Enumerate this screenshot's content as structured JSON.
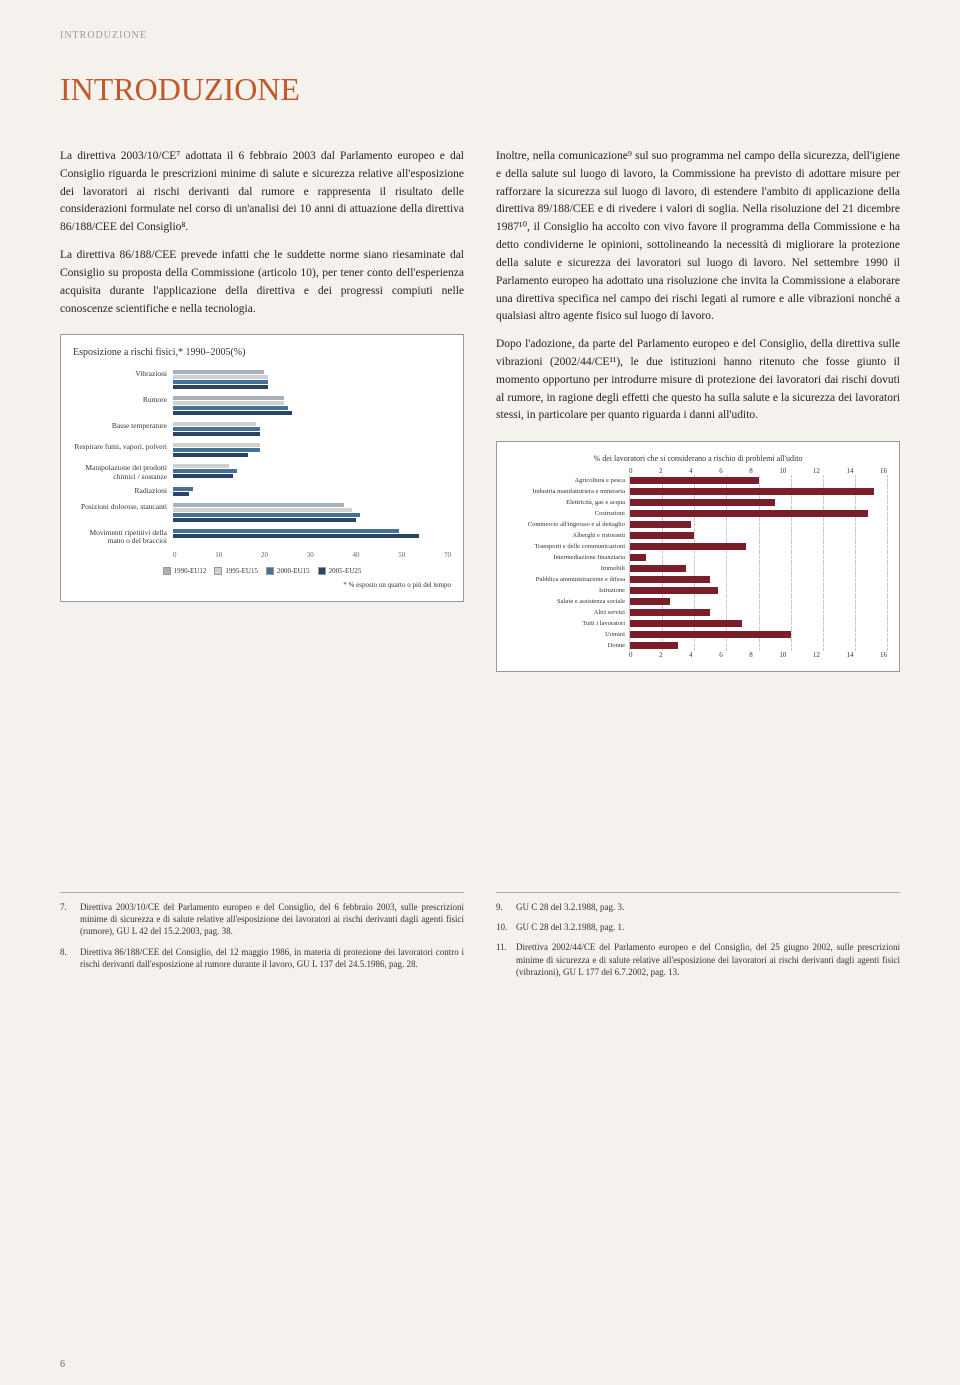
{
  "header_label": "INTRODUZIONE",
  "page_title": "INTRODUZIONE",
  "left_paras": [
    "La direttiva 2003/10/CE⁷ adottata il 6 febbraio 2003 dal Parlamento europeo e dal Consiglio riguarda le prescrizioni minime di salute e sicurezza relative all'esposizione dei lavoratori ai rischi derivanti dal rumore e rappresenta il risultato delle considerazioni formulate nel corso di un'analisi dei 10 anni di attuazione della direttiva 86/188/CEE del Consiglio⁸.",
    "La direttiva 86/188/CEE prevede infatti che le suddette norme siano riesaminate dal Consiglio su proposta della Commissione (articolo 10), per tener conto dell'esperienza acquisita durante l'applicazione della direttiva e dei progressi compiuti nelle conoscenze scientifiche e nella tecnologia."
  ],
  "right_paras": [
    "Inoltre, nella comunicazione⁹ sul suo programma nel campo della sicurezza, dell'igiene e della salute sul luogo di lavoro, la Commissione ha previsto di adottare misure per rafforzare la sicurezza sul luogo di lavoro, di estendere l'ambito di applicazione della direttiva 89/188/CEE e di rivedere i valori di soglia. Nella risoluzione del 21 dicembre 1987¹⁰, il Consiglio ha accolto con vivo favore il programma della Commissione e ha detto condividerne le opinioni, sottolineando la necessità di migliorare la protezione della salute e sicurezza dei lavoratori sul luogo di lavoro. Nel settembre 1990 il Parlamento europeo ha adottato una risoluzione che invita la Commissione a elaborare una direttiva specifica nel campo dei rischi legati al rumore e alle vibrazioni nonché a qualsiasi altro agente fisico sul luogo di lavoro.",
    "Dopo l'adozione, da parte del Parlamento europeo e del Consiglio, della direttiva sulle vibrazioni (2002/44/CE¹¹), le due istituzioni hanno ritenuto che fosse giunto il momento opportuno per introdurre misure di protezione dei lavoratori dai rischi dovuti al rumore, in ragione degli effetti che questo ha sulla salute e la sicurezza dei lavoratori stessi, in particolare per quanto riguarda i danni all'udito."
  ],
  "chart1": {
    "type": "bar",
    "title": "Esposizione a rischi fisici,* 1990–2005(%)",
    "xmax": 70,
    "categories": [
      "Vibrazioni",
      "Rumore",
      "Basse temperature",
      "Respirare fumi, vapori, polveri",
      "Manipolazione dei prodotti chimici / sostanze",
      "Radiazioni",
      "Posizioni dolorose, stancanti",
      "Movimenti ripetitivi della mano o del braccioi"
    ],
    "series_labels": [
      "1990-EU12",
      "1995-EU15",
      "2000-EU15",
      "2005-EU25"
    ],
    "series_colors": [
      "#a8b0b8",
      "#d0d0d0",
      "#447099",
      "#2a4466"
    ],
    "data": [
      [
        23,
        24,
        24,
        24
      ],
      [
        28,
        28,
        29,
        30
      ],
      [
        0,
        21,
        22,
        22
      ],
      [
        0,
        22,
        22,
        19
      ],
      [
        0,
        14,
        16,
        15
      ],
      [
        0,
        0,
        5,
        4
      ],
      [
        43,
        45,
        47,
        46
      ],
      [
        0,
        0,
        57,
        62
      ]
    ],
    "note": "* % esposto un quarto o più del tempo",
    "xticks": [
      0,
      10,
      20,
      30,
      40,
      50,
      70
    ]
  },
  "chart2": {
    "type": "bar",
    "title": "% dei lavoratori che si considerano a rischio di problemi all'udito",
    "xmax": 16,
    "bar_color": "#7a1f2a",
    "grid_color": "#cccccc",
    "xticks": [
      0,
      2,
      4,
      6,
      8,
      10,
      12,
      14,
      16
    ],
    "rows": [
      {
        "label": "Agricoltura e pesca",
        "value": 8.0
      },
      {
        "label": "Industria manifatturiera e mineraria",
        "value": 15.2
      },
      {
        "label": "Elettricità, gas e acqua",
        "value": 9.0
      },
      {
        "label": "Costruzioni",
        "value": 14.8
      },
      {
        "label": "Commercio all'ingrosso e al dettaglio",
        "value": 3.8
      },
      {
        "label": "Alberghi e ristoranti",
        "value": 4.0
      },
      {
        "label": "Transporti e delle communicazioni",
        "value": 7.2
      },
      {
        "label": "Intermediazione finanziaria",
        "value": 1.0
      },
      {
        "label": "Immobili",
        "value": 3.5
      },
      {
        "label": "Pubblica amministrazione e difesa",
        "value": 5.0
      },
      {
        "label": "Istruzione",
        "value": 5.5
      },
      {
        "label": "Salute e assistenza sociale",
        "value": 2.5
      },
      {
        "label": "Altri servizi",
        "value": 5.0
      },
      {
        "label": "Tutti i lavoratori",
        "value": 7.0
      },
      {
        "label": "Uomini",
        "value": 10.0
      },
      {
        "label": "Donne",
        "value": 3.0
      }
    ]
  },
  "footnotes_left": [
    {
      "num": "7.",
      "text": "Direttiva 2003/10/CE del Parlamento europeo e del Consiglio, del 6 febbraio 2003, sulle prescrizioni minime di sicurezza e di salute relative all'esposizione dei lavoratori ai rischi derivanti dagli agenti fisici (rumore), GU L 42 del 15.2.2003, pag. 38."
    },
    {
      "num": "8.",
      "text": "Direttiva 86/188/CEE del Consiglio, del 12 maggio 1986, in materia di protezione dei lavoratori contro i rischi derivanti dall'esposizione al rumore durante il lavoro, GU L 137 del 24.5.1986, pag. 28."
    }
  ],
  "footnotes_right": [
    {
      "num": "9.",
      "text": "GU C 28 del 3.2.1988, pag. 3."
    },
    {
      "num": "10.",
      "text": "GU C 28 del 3.2.1988, pag. 1."
    },
    {
      "num": "11.",
      "text": "Direttiva 2002/44/CE del Parlamento europeo e del Consiglio, del 25 giugno 2002, sulle prescrizioni minime di sicurezza e di salute relative all'esposizione dei lavoratori ai rischi derivanti dagli agenti fisici (vibrazioni), GU L 177 del 6.7.2002, pag. 13."
    }
  ],
  "page_number": "6"
}
